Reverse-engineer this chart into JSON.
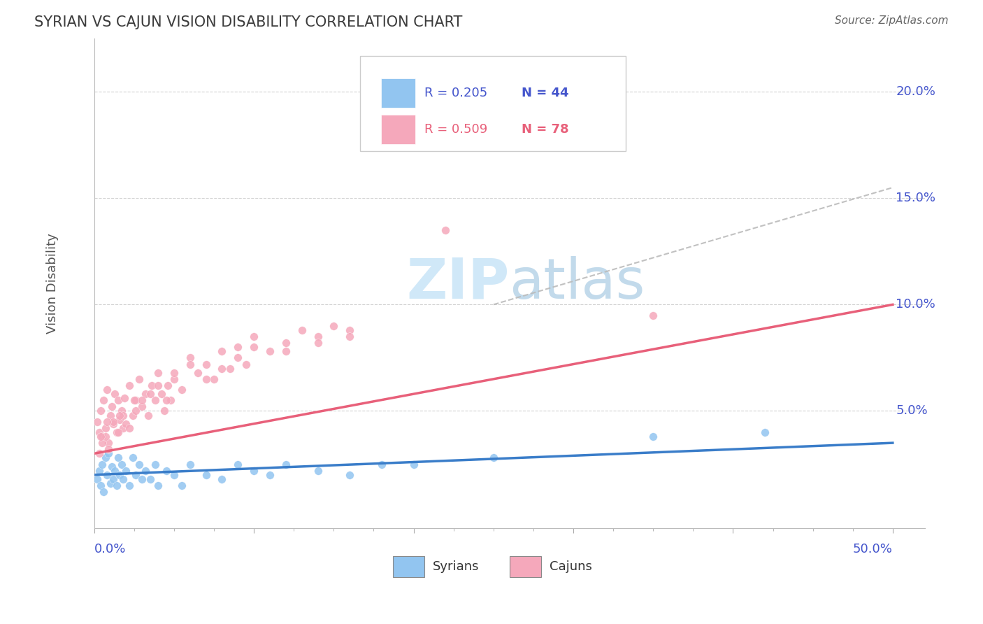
{
  "title": "SYRIAN VS CAJUN VISION DISABILITY CORRELATION CHART",
  "source": "Source: ZipAtlas.com",
  "ylabel": "Vision Disability",
  "xlim": [
    0.0,
    0.52
  ],
  "ylim": [
    -0.005,
    0.225
  ],
  "yticks": [
    0.05,
    0.1,
    0.15,
    0.2
  ],
  "ytick_labels": [
    "5.0%",
    "10.0%",
    "15.0%",
    "20.0%"
  ],
  "syrians_R": 0.205,
  "syrians_N": 44,
  "cajuns_R": 0.509,
  "cajuns_N": 78,
  "syrian_color": "#92C5F0",
  "cajun_color": "#F5A8BB",
  "syrian_line_color": "#3A7DC9",
  "cajun_line_color": "#E8607A",
  "watermark_color": "#D0E8F8",
  "background_color": "#FFFFFF",
  "grid_color": "#CCCCCC",
  "title_color": "#3C3C3C",
  "axis_label_color": "#4455CC",
  "legend_R_color_syrian": "#4455CC",
  "legend_N_color_syrian": "#4455CC",
  "legend_R_color_cajun": "#E8607A",
  "legend_N_color_cajun": "#E8607A"
}
